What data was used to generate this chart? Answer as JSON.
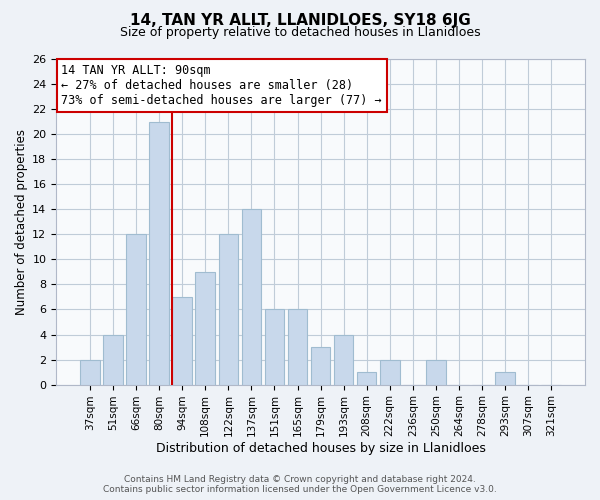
{
  "title": "14, TAN YR ALLT, LLANIDLOES, SY18 6JG",
  "subtitle": "Size of property relative to detached houses in Llanidloes",
  "xlabel": "Distribution of detached houses by size in Llanidloes",
  "ylabel": "Number of detached properties",
  "footer_line1": "Contains HM Land Registry data © Crown copyright and database right 2024.",
  "footer_line2": "Contains public sector information licensed under the Open Government Licence v3.0.",
  "bar_labels": [
    "37sqm",
    "51sqm",
    "66sqm",
    "80sqm",
    "94sqm",
    "108sqm",
    "122sqm",
    "137sqm",
    "151sqm",
    "165sqm",
    "179sqm",
    "193sqm",
    "208sqm",
    "222sqm",
    "236sqm",
    "250sqm",
    "264sqm",
    "278sqm",
    "293sqm",
    "307sqm",
    "321sqm"
  ],
  "bar_values": [
    2,
    4,
    12,
    21,
    7,
    9,
    12,
    14,
    6,
    6,
    3,
    4,
    1,
    2,
    0,
    2,
    0,
    0,
    1,
    0,
    0
  ],
  "bar_color": "#c8d8eb",
  "bar_edge_color": "#a0bcd0",
  "vline_color": "#cc0000",
  "annotation_title": "14 TAN YR ALLT: 90sqm",
  "annotation_line1": "← 27% of detached houses are smaller (28)",
  "annotation_line2": "73% of semi-detached houses are larger (77) →",
  "annotation_box_color": "white",
  "annotation_box_edge": "#cc0000",
  "ylim": [
    0,
    26
  ],
  "yticks": [
    0,
    2,
    4,
    6,
    8,
    10,
    12,
    14,
    16,
    18,
    20,
    22,
    24,
    26
  ],
  "background_color": "#eef2f7",
  "plot_background": "#f8fafc",
  "grid_color": "#c0ccd8"
}
